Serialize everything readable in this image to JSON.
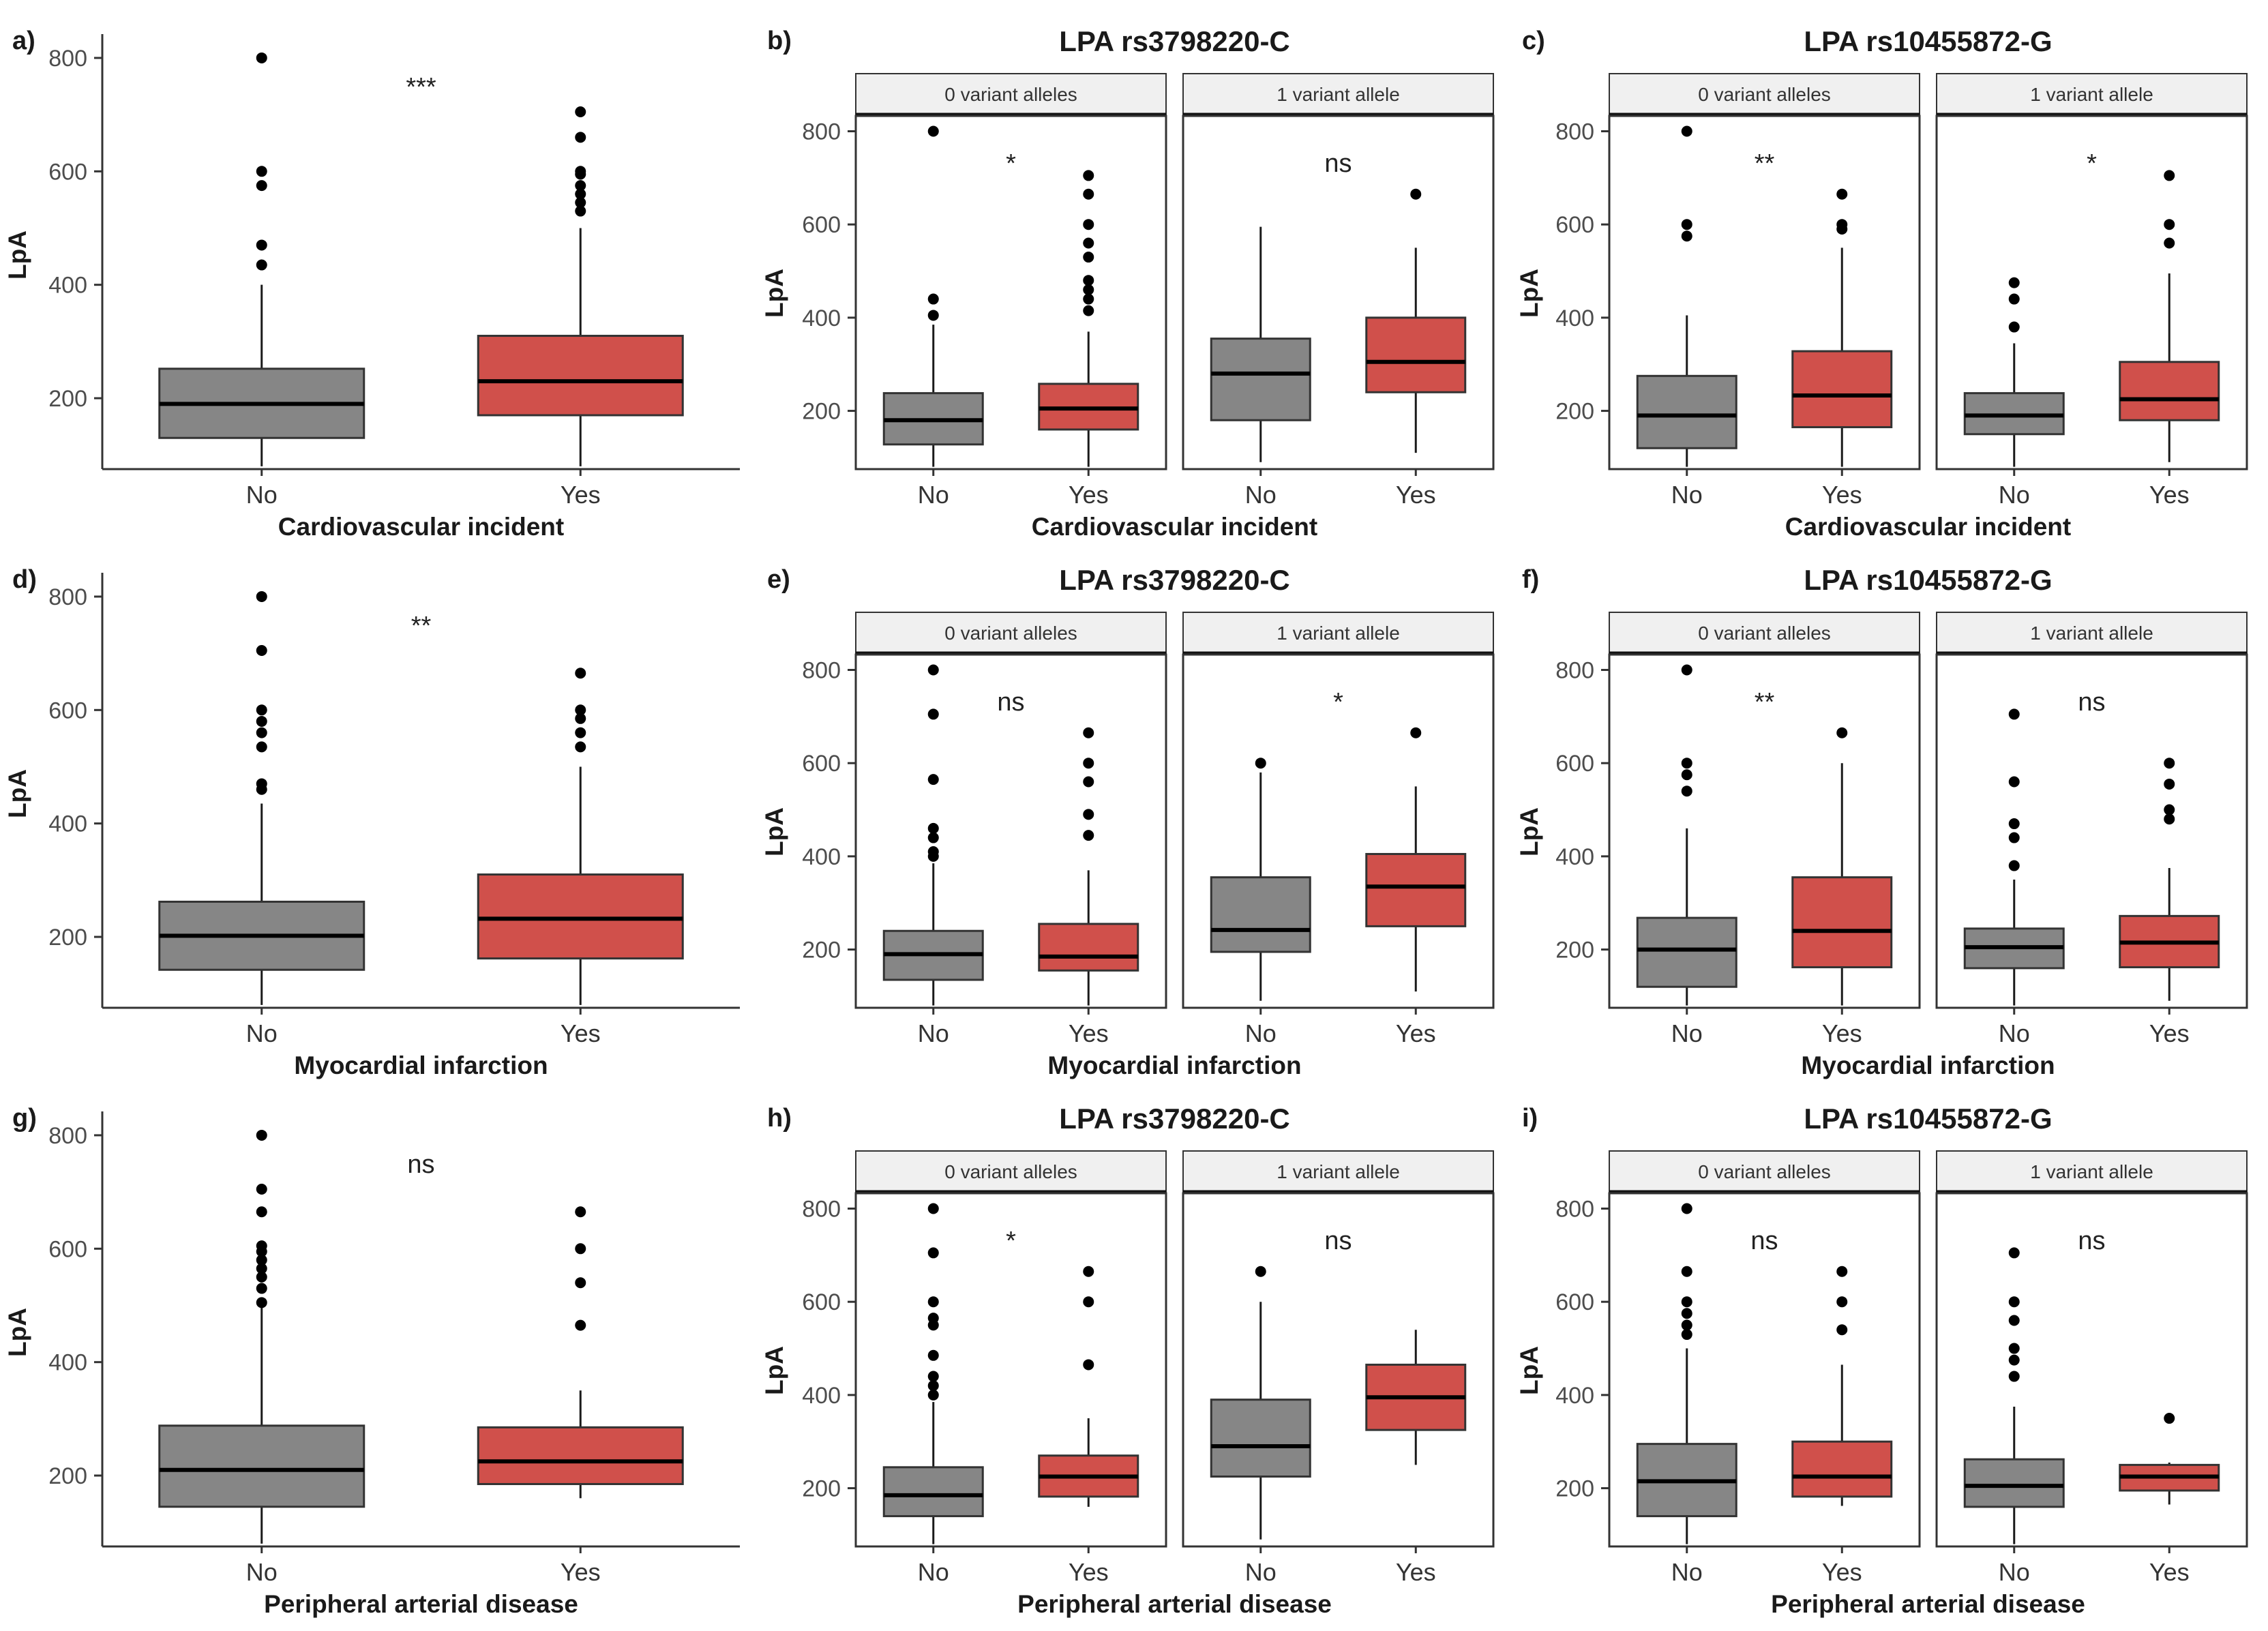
{
  "colors": {
    "no": "#868686",
    "yes": "#d0504b",
    "strip": "#f0f0f0",
    "outline": "#1a1a1a"
  },
  "chart_data": [
    {
      "id": "a",
      "type": "box",
      "label": "a)",
      "title": "",
      "xlabel": "Cardiovascular incident",
      "ylabel": "LpA",
      "ylim": [
        75,
        830
      ],
      "yticks": [
        200,
        400,
        600,
        800
      ],
      "categories": [
        "No",
        "Yes"
      ],
      "facets": [
        {
          "strip": "",
          "sig": "***",
          "boxes": [
            {
              "cat": "No",
              "q1": 130,
              "median": 190,
              "q3": 252,
              "lo": 80,
              "hi": 400,
              "outliers": [
                435,
                470,
                575,
                600,
                800
              ]
            },
            {
              "cat": "Yes",
              "q1": 170,
              "median": 230,
              "q3": 310,
              "lo": 80,
              "hi": 500,
              "outliers": [
                530,
                545,
                560,
                575,
                595,
                600,
                660,
                705
              ]
            }
          ]
        }
      ]
    },
    {
      "id": "b",
      "type": "box",
      "label": "b)",
      "title": "LPA rs3798220-C",
      "xlabel": "Cardiovascular incident",
      "ylabel": "LpA",
      "ylim": [
        75,
        830
      ],
      "yticks": [
        200,
        400,
        600,
        800
      ],
      "categories": [
        "No",
        "Yes"
      ],
      "facets": [
        {
          "strip": "0 variant alleles",
          "sig": "*",
          "boxes": [
            {
              "cat": "No",
              "q1": 128,
              "median": 180,
              "q3": 238,
              "lo": 80,
              "hi": 385,
              "outliers": [
                405,
                440,
                800
              ]
            },
            {
              "cat": "Yes",
              "q1": 160,
              "median": 205,
              "q3": 258,
              "lo": 80,
              "hi": 370,
              "outliers": [
                415,
                440,
                460,
                480,
                530,
                560,
                600,
                665,
                705
              ]
            }
          ]
        },
        {
          "strip": "1 variant allele",
          "sig": "ns",
          "boxes": [
            {
              "cat": "No",
              "q1": 180,
              "median": 280,
              "q3": 355,
              "lo": 90,
              "hi": 595,
              "outliers": []
            },
            {
              "cat": "Yes",
              "q1": 240,
              "median": 305,
              "q3": 400,
              "lo": 110,
              "hi": 550,
              "outliers": [
                665
              ]
            }
          ]
        }
      ]
    },
    {
      "id": "c",
      "type": "box",
      "label": "c)",
      "title": "LPA rs10455872-G",
      "xlabel": "Cardiovascular incident",
      "ylabel": "LpA",
      "ylim": [
        75,
        830
      ],
      "yticks": [
        200,
        400,
        600,
        800
      ],
      "categories": [
        "No",
        "Yes",
        "No",
        "Yes"
      ],
      "facets": [
        {
          "strip": "0 variant alleles",
          "sig": "**",
          "boxes": [
            {
              "cat": "No",
              "q1": 120,
              "median": 190,
              "q3": 275,
              "lo": 80,
              "hi": 405,
              "outliers": [
                575,
                600,
                800
              ]
            },
            {
              "cat": "Yes",
              "q1": 165,
              "median": 233,
              "q3": 328,
              "lo": 80,
              "hi": 550,
              "outliers": [
                590,
                600,
                665
              ]
            }
          ]
        },
        {
          "strip": "1 variant allele",
          "sig": "*",
          "boxes": [
            {
              "cat": "No",
              "q1": 150,
              "median": 190,
              "q3": 238,
              "lo": 80,
              "hi": 345,
              "outliers": [
                380,
                440,
                475
              ]
            },
            {
              "cat": "Yes",
              "q1": 180,
              "median": 225,
              "q3": 305,
              "lo": 90,
              "hi": 495,
              "outliers": [
                560,
                600,
                705
              ]
            }
          ]
        }
      ]
    },
    {
      "id": "d",
      "type": "box",
      "label": "d)",
      "title": "",
      "xlabel": "Myocardial infarction",
      "ylabel": "LpA",
      "ylim": [
        75,
        830
      ],
      "yticks": [
        200,
        400,
        600,
        800
      ],
      "categories": [
        "No",
        "Yes"
      ],
      "facets": [
        {
          "strip": "",
          "sig": "**",
          "boxes": [
            {
              "cat": "No",
              "q1": 142,
              "median": 202,
              "q3": 262,
              "lo": 80,
              "hi": 435,
              "outliers": [
                460,
                470,
                535,
                560,
                580,
                600,
                705,
                800
              ]
            },
            {
              "cat": "Yes",
              "q1": 162,
              "median": 232,
              "q3": 310,
              "lo": 80,
              "hi": 500,
              "outliers": [
                535,
                560,
                585,
                600,
                665
              ]
            }
          ]
        }
      ]
    },
    {
      "id": "e",
      "type": "box",
      "label": "e)",
      "title": "LPA rs3798220-C",
      "xlabel": "Myocardial infarction",
      "ylabel": "LpA",
      "ylim": [
        75,
        830
      ],
      "yticks": [
        200,
        400,
        600,
        800
      ],
      "categories": [
        "No",
        "Yes"
      ],
      "facets": [
        {
          "strip": "0 variant alleles",
          "sig": "ns",
          "boxes": [
            {
              "cat": "No",
              "q1": 135,
              "median": 190,
              "q3": 240,
              "lo": 80,
              "hi": 385,
              "outliers": [
                400,
                410,
                440,
                460,
                565,
                705,
                800
              ]
            },
            {
              "cat": "Yes",
              "q1": 155,
              "median": 185,
              "q3": 255,
              "lo": 80,
              "hi": 370,
              "outliers": [
                445,
                490,
                560,
                600,
                665
              ]
            }
          ]
        },
        {
          "strip": "1 variant allele",
          "sig": "*",
          "boxes": [
            {
              "cat": "No",
              "q1": 195,
              "median": 242,
              "q3": 355,
              "lo": 90,
              "hi": 580,
              "outliers": [
                600
              ]
            },
            {
              "cat": "Yes",
              "q1": 250,
              "median": 335,
              "q3": 405,
              "lo": 110,
              "hi": 550,
              "outliers": [
                665
              ]
            }
          ]
        }
      ]
    },
    {
      "id": "f",
      "type": "box",
      "label": "f)",
      "title": "LPA rs10455872-G",
      "xlabel": "Myocardial infarction",
      "ylabel": "LpA",
      "ylim": [
        75,
        830
      ],
      "yticks": [
        200,
        400,
        600,
        800
      ],
      "categories": [
        "No",
        "Yes",
        "No",
        "Yes"
      ],
      "facets": [
        {
          "strip": "0 variant alleles",
          "sig": "**",
          "boxes": [
            {
              "cat": "No",
              "q1": 120,
              "median": 200,
              "q3": 268,
              "lo": 80,
              "hi": 460,
              "outliers": [
                540,
                575,
                600,
                800
              ]
            },
            {
              "cat": "Yes",
              "q1": 162,
              "median": 240,
              "q3": 355,
              "lo": 80,
              "hi": 600,
              "outliers": [
                665
              ]
            }
          ]
        },
        {
          "strip": "1 variant allele",
          "sig": "ns",
          "boxes": [
            {
              "cat": "No",
              "q1": 160,
              "median": 205,
              "q3": 245,
              "lo": 80,
              "hi": 350,
              "outliers": [
                380,
                440,
                470,
                560,
                705
              ]
            },
            {
              "cat": "Yes",
              "q1": 162,
              "median": 215,
              "q3": 272,
              "lo": 90,
              "hi": 375,
              "outliers": [
                480,
                500,
                555,
                600
              ]
            }
          ]
        }
      ]
    },
    {
      "id": "g",
      "type": "box",
      "label": "g)",
      "title": "",
      "xlabel": "Peripheral arterial disease",
      "ylabel": "LpA",
      "ylim": [
        75,
        830
      ],
      "yticks": [
        200,
        400,
        600,
        800
      ],
      "categories": [
        "No",
        "Yes"
      ],
      "facets": [
        {
          "strip": "",
          "sig": "ns",
          "boxes": [
            {
              "cat": "No",
              "q1": 145,
              "median": 210,
              "q3": 288,
              "lo": 80,
              "hi": 500,
              "outliers": [
                505,
                530,
                550,
                565,
                580,
                595,
                605,
                665,
                705,
                800
              ]
            },
            {
              "cat": "Yes",
              "q1": 185,
              "median": 225,
              "q3": 285,
              "lo": 160,
              "hi": 350,
              "outliers": [
                465,
                540,
                600,
                665
              ]
            }
          ]
        }
      ]
    },
    {
      "id": "h",
      "type": "box",
      "label": "h)",
      "title": "LPA rs3798220-C",
      "xlabel": "Peripheral arterial disease",
      "ylabel": "LpA",
      "ylim": [
        75,
        830
      ],
      "yticks": [
        200,
        400,
        600,
        800
      ],
      "categories": [
        "No",
        "Yes"
      ],
      "facets": [
        {
          "strip": "0 variant alleles",
          "sig": "*",
          "boxes": [
            {
              "cat": "No",
              "q1": 140,
              "median": 185,
              "q3": 245,
              "lo": 80,
              "hi": 385,
              "outliers": [
                400,
                420,
                440,
                485,
                550,
                565,
                600,
                705,
                800
              ]
            },
            {
              "cat": "Yes",
              "q1": 182,
              "median": 225,
              "q3": 270,
              "lo": 160,
              "hi": 350,
              "outliers": [
                465,
                600,
                665
              ]
            }
          ]
        },
        {
          "strip": "1 variant allele",
          "sig": "ns",
          "boxes": [
            {
              "cat": "No",
              "q1": 225,
              "median": 290,
              "q3": 390,
              "lo": 90,
              "hi": 600,
              "outliers": [
                665
              ]
            },
            {
              "cat": "Yes",
              "q1": 325,
              "median": 395,
              "q3": 465,
              "lo": 250,
              "hi": 540,
              "outliers": []
            }
          ]
        }
      ]
    },
    {
      "id": "i",
      "type": "box",
      "label": "i)",
      "title": "LPA rs10455872-G",
      "xlabel": "Peripheral arterial disease",
      "ylabel": "LpA",
      "ylim": [
        75,
        830
      ],
      "yticks": [
        200,
        400,
        600,
        800
      ],
      "categories": [
        "No",
        "Yes",
        "No",
        "Yes"
      ],
      "facets": [
        {
          "strip": "0 variant alleles",
          "sig": "ns",
          "boxes": [
            {
              "cat": "No",
              "q1": 140,
              "median": 215,
              "q3": 295,
              "lo": 80,
              "hi": 500,
              "outliers": [
                530,
                550,
                575,
                600,
                665,
                800
              ]
            },
            {
              "cat": "Yes",
              "q1": 182,
              "median": 225,
              "q3": 300,
              "lo": 162,
              "hi": 465,
              "outliers": [
                540,
                600,
                665
              ]
            }
          ]
        },
        {
          "strip": "1 variant allele",
          "sig": "ns",
          "boxes": [
            {
              "cat": "No",
              "q1": 160,
              "median": 205,
              "q3": 262,
              "lo": 80,
              "hi": 375,
              "outliers": [
                440,
                475,
                500,
                560,
                600,
                705
              ]
            },
            {
              "cat": "Yes",
              "q1": 195,
              "median": 225,
              "q3": 250,
              "lo": 165,
              "hi": 255,
              "outliers": [
                350
              ]
            }
          ]
        }
      ]
    }
  ]
}
